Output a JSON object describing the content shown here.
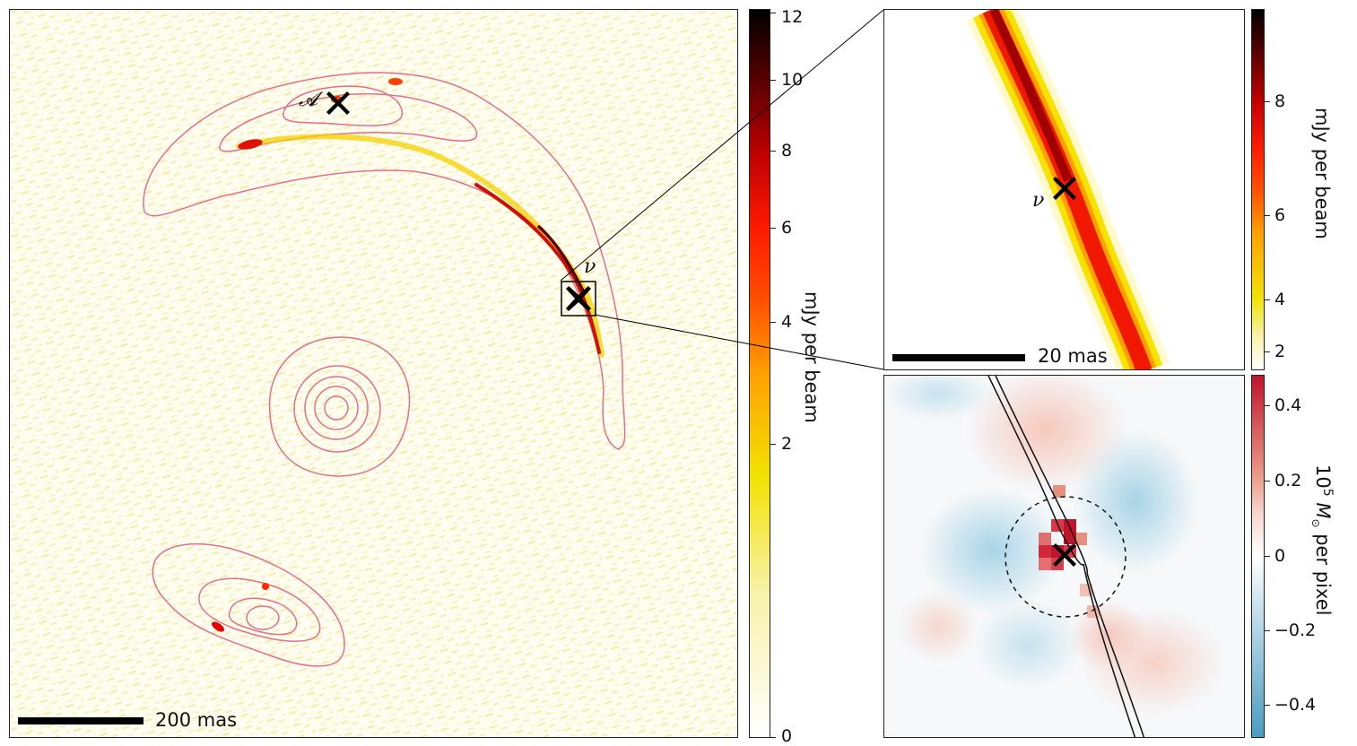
{
  "main_panel": {
    "scalebar_label": "200 mas",
    "markers": [
      {
        "label": "𝓐"
      },
      {
        "label": "ν"
      }
    ]
  },
  "main_colorbar": {
    "ticks": [
      "12",
      "10",
      "8",
      "6",
      "4",
      "2",
      "0"
    ],
    "unit_label": "mJy per beam",
    "colormap": [
      "#ffffff",
      "#f2e200",
      "#ff8000",
      "#ff1a00",
      "#b00000",
      "#000000"
    ]
  },
  "zoom_panel": {
    "scalebar_label": "20 mas",
    "marker_label": "ν"
  },
  "zoom_colorbar": {
    "ticks": [
      "8",
      "6",
      "4",
      "2"
    ],
    "unit_label": "mJy per beam"
  },
  "mass_panel": {},
  "mass_colorbar": {
    "ticks": [
      "0.4",
      "0.2",
      "0",
      "−0.2",
      "−0.4"
    ],
    "unit_label_base": "10",
    "unit_label_sup": "5",
    "unit_label_rest": " M",
    "unit_label_sub": "⊙",
    "unit_label_tail": " per pixel",
    "colormap": [
      "#4a9cc2",
      "#ffffff",
      "#c0142c"
    ]
  },
  "colors": {
    "contour": "#e2708a",
    "arc": "#e01010",
    "noise": "#f3ee9e"
  }
}
